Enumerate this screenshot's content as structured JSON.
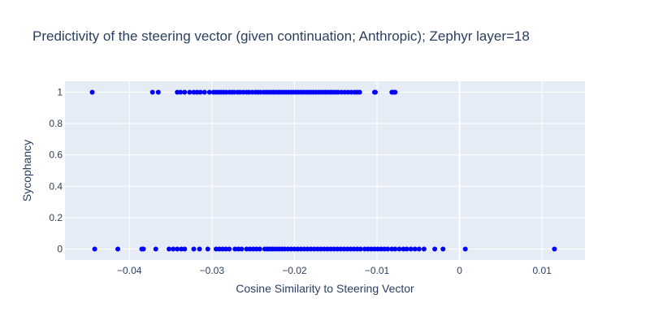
{
  "chart_data": {
    "type": "scatter",
    "title": "Predictivity of the steering vector (given continuation; Anthropic); Zephyr layer=18",
    "xlabel": "Cosine Similarity to Steering Vector",
    "ylabel": "Sycophancy",
    "xlim": [
      -0.0478,
      0.0152
    ],
    "ylim": [
      -0.07,
      1.07
    ],
    "xticks": [
      -0.04,
      -0.03,
      -0.02,
      -0.01,
      0,
      0.01
    ],
    "xtick_labels": [
      "−0.04",
      "−0.03",
      "−0.02",
      "−0.01",
      "0",
      "0.01"
    ],
    "yticks": [
      0,
      0.2,
      0.4,
      0.6,
      0.8,
      1
    ],
    "ytick_labels": [
      "0",
      "0.2",
      "0.4",
      "0.6",
      "0.8",
      "1"
    ],
    "grid": true,
    "marker_color": "#0000ff",
    "background_color": "#e5ecf6",
    "series": [
      {
        "x": [
          -0.0445,
          -0.0372,
          -0.0365,
          -0.0342,
          -0.0338,
          -0.0333,
          -0.0327,
          -0.0322,
          -0.0318,
          -0.0314,
          -0.0309,
          -0.0303,
          -0.0298,
          -0.0295,
          -0.0292,
          -0.0289,
          -0.0286,
          -0.0283,
          -0.0279,
          -0.0276,
          -0.0273,
          -0.0269,
          -0.0266,
          -0.0262,
          -0.0258,
          -0.0255,
          -0.0251,
          -0.0247,
          -0.0244,
          -0.0241,
          -0.0237,
          -0.0234,
          -0.0231,
          -0.0228,
          -0.0225,
          -0.0222,
          -0.0219,
          -0.0216,
          -0.0213,
          -0.021,
          -0.0207,
          -0.0204,
          -0.0201,
          -0.0198,
          -0.0195,
          -0.0192,
          -0.0189,
          -0.0186,
          -0.0183,
          -0.018,
          -0.0177,
          -0.0174,
          -0.0171,
          -0.0168,
          -0.0165,
          -0.0162,
          -0.0159,
          -0.0156,
          -0.0153,
          -0.015,
          -0.0147,
          -0.0143,
          -0.0139,
          -0.0135,
          -0.0131,
          -0.0127,
          -0.0124,
          -0.0121,
          -0.0103,
          -0.0102,
          -0.0082,
          -0.008,
          -0.0078
        ],
        "y": [
          1,
          1,
          1,
          1,
          1,
          1,
          1,
          1,
          1,
          1,
          1,
          1,
          1,
          1,
          1,
          1,
          1,
          1,
          1,
          1,
          1,
          1,
          1,
          1,
          1,
          1,
          1,
          1,
          1,
          1,
          1,
          1,
          1,
          1,
          1,
          1,
          1,
          1,
          1,
          1,
          1,
          1,
          1,
          1,
          1,
          1,
          1,
          1,
          1,
          1,
          1,
          1,
          1,
          1,
          1,
          1,
          1,
          1,
          1,
          1,
          1,
          1,
          1,
          1,
          1,
          1,
          1,
          1,
          1,
          1,
          1,
          1,
          1
        ]
      },
      {
        "x": [
          -0.0442,
          -0.0414,
          -0.0385,
          -0.0383,
          -0.0368,
          -0.0352,
          -0.0347,
          -0.0342,
          -0.0337,
          -0.0333,
          -0.0322,
          -0.0315,
          -0.0305,
          -0.0295,
          -0.0291,
          -0.0287,
          -0.0283,
          -0.0279,
          -0.0272,
          -0.0268,
          -0.0264,
          -0.0258,
          -0.0254,
          -0.025,
          -0.0246,
          -0.0242,
          -0.0236,
          -0.0233,
          -0.023,
          -0.0227,
          -0.0224,
          -0.0221,
          -0.0218,
          -0.0215,
          -0.0212,
          -0.0208,
          -0.0204,
          -0.02,
          -0.0196,
          -0.0192,
          -0.0188,
          -0.0184,
          -0.018,
          -0.0176,
          -0.0172,
          -0.0168,
          -0.0164,
          -0.016,
          -0.0156,
          -0.0152,
          -0.0148,
          -0.0144,
          -0.014,
          -0.0136,
          -0.0132,
          -0.0128,
          -0.0124,
          -0.012,
          -0.0115,
          -0.0111,
          -0.0107,
          -0.0103,
          -0.0099,
          -0.0095,
          -0.0091,
          -0.0087,
          -0.0082,
          -0.0078,
          -0.0073,
          -0.0068,
          -0.0064,
          -0.0059,
          -0.0054,
          -0.0049,
          -0.0043,
          -0.003,
          -0.002,
          0.0007,
          0.0115
        ],
        "y": [
          0,
          0,
          0,
          0,
          0,
          0,
          0,
          0,
          0,
          0,
          0,
          0,
          0,
          0,
          0,
          0,
          0,
          0,
          0,
          0,
          0,
          0,
          0,
          0,
          0,
          0,
          0,
          0,
          0,
          0,
          0,
          0,
          0,
          0,
          0,
          0,
          0,
          0,
          0,
          0,
          0,
          0,
          0,
          0,
          0,
          0,
          0,
          0,
          0,
          0,
          0,
          0,
          0,
          0,
          0,
          0,
          0,
          0,
          0,
          0,
          0,
          0,
          0,
          0,
          0,
          0,
          0,
          0,
          0,
          0,
          0,
          0,
          0,
          0,
          0,
          0,
          0,
          0,
          0
        ]
      }
    ]
  }
}
